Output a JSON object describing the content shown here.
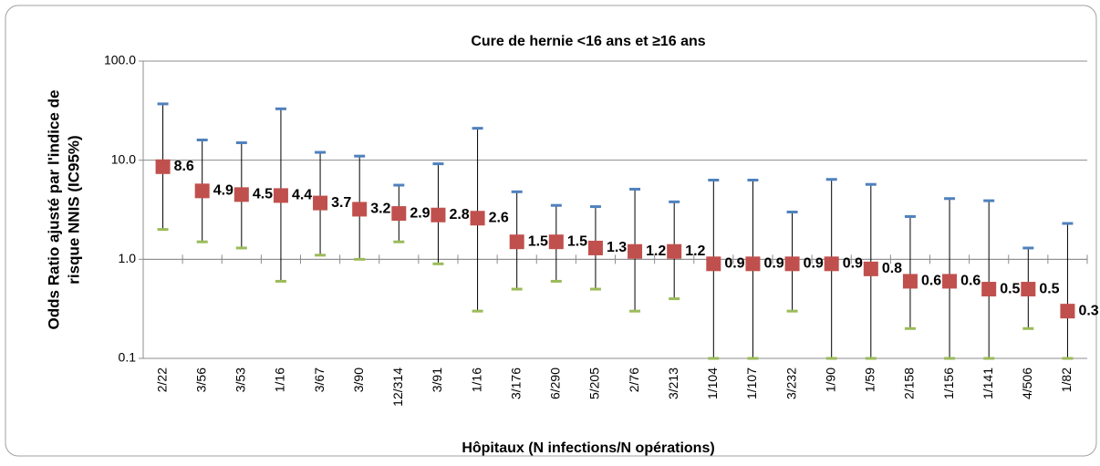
{
  "chart_data": {
    "type": "errorbar",
    "title": "Cure de hernie <16 ans et ≥16 ans",
    "y_label": [
      "Odds Ratio ajusté par l'indice de",
      "risque NNIS (IC95%)"
    ],
    "x_label": "Hôpitaux (N infections/N opérations)",
    "categories": [
      "2/22",
      "3/56",
      "3/53",
      "1/16",
      "3/67",
      "3/90",
      "12/314",
      "3/91",
      "1/16",
      "3/176",
      "6/290",
      "5/205",
      "2/76",
      "3/213",
      "1/104",
      "1/107",
      "3/232",
      "1/90",
      "1/59",
      "2/158",
      "1/156",
      "1/141",
      "4/506",
      "1/82"
    ],
    "series": [
      {
        "color": "#c0504d",
        "high_color": "#4f81bd",
        "low_color": "#9bbb59",
        "values": [
          8.6,
          4.9,
          4.5,
          4.4,
          3.7,
          3.2,
          2.9,
          2.8,
          2.6,
          1.5,
          1.5,
          1.3,
          1.2,
          1.2,
          0.9,
          0.9,
          0.9,
          0.9,
          0.8,
          0.6,
          0.6,
          0.5,
          0.5,
          0.3
        ],
        "low": [
          2,
          1.5,
          1.3,
          0.6,
          1.1,
          1.0,
          1.5,
          0.9,
          0.3,
          0.5,
          0.6,
          0.5,
          0.3,
          0.4,
          0.1,
          0.1,
          0.3,
          0.1,
          0.1,
          0.2,
          0.1,
          0.1,
          0.2,
          0.1
        ],
        "high": [
          37,
          16,
          15,
          33,
          12,
          11,
          5.6,
          9.2,
          21,
          4.8,
          3.5,
          3.4,
          5.1,
          3.8,
          6.3,
          6.3,
          3.0,
          6.4,
          5.7,
          2.7,
          4.1,
          3.9,
          1.3,
          2.3
        ]
      }
    ],
    "log_y": true,
    "ylim": [
      0.1,
      100
    ],
    "yticks": [
      0.1,
      {
        "value": 1,
        "label": "1.0"
      },
      {
        "value": 10,
        "label": "10.0"
      },
      {
        "value": 100,
        "label": "100.0"
      }
    ],
    "x_axis_at": 1,
    "grid": true
  }
}
